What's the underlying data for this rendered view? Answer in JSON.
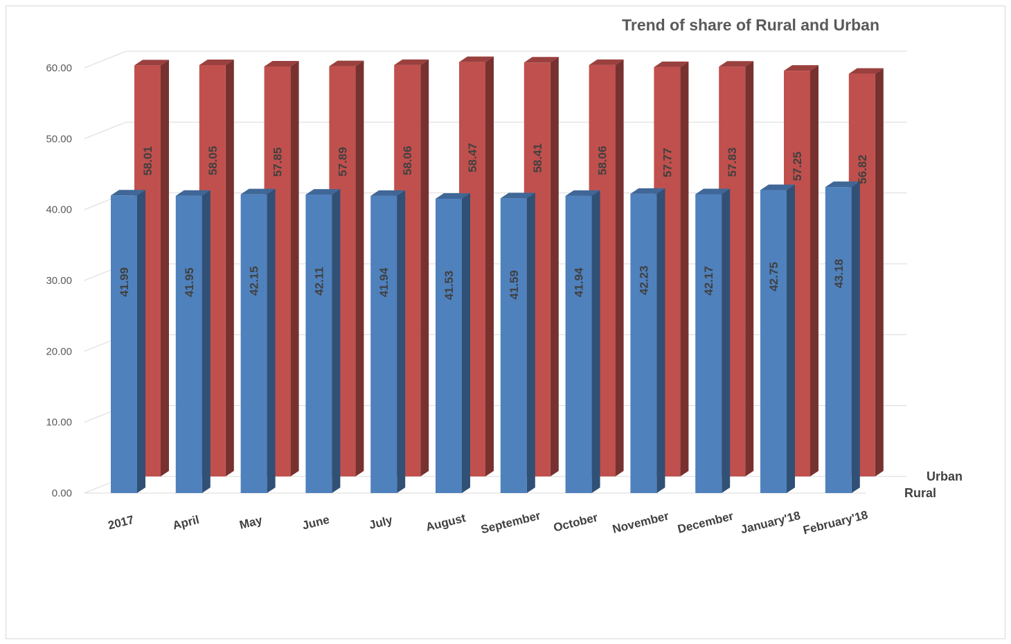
{
  "chart_data": {
    "type": "bar",
    "title": "Trend of  share of Rural and Urban",
    "categories": [
      "2017",
      "April",
      "May",
      "June",
      "July",
      "August",
      "September",
      "October",
      "November",
      "December",
      "January'18",
      "February'18"
    ],
    "series": [
      {
        "name": "Rural",
        "color": "#4f81bd",
        "values": [
          41.99,
          41.95,
          42.15,
          42.11,
          41.94,
          41.53,
          41.59,
          41.94,
          42.23,
          42.17,
          42.75,
          43.18
        ]
      },
      {
        "name": "Urban",
        "color": "#c0504d",
        "values": [
          58.01,
          58.05,
          57.85,
          57.89,
          58.06,
          58.47,
          58.41,
          58.06,
          57.77,
          57.83,
          57.25,
          56.82
        ]
      }
    ],
    "ylim": [
      0,
      60
    ],
    "yticks": [
      "0.00",
      "10.00",
      "20.00",
      "30.00",
      "40.00",
      "50.00",
      "60.00"
    ],
    "grid": true,
    "style": "3d-column"
  }
}
